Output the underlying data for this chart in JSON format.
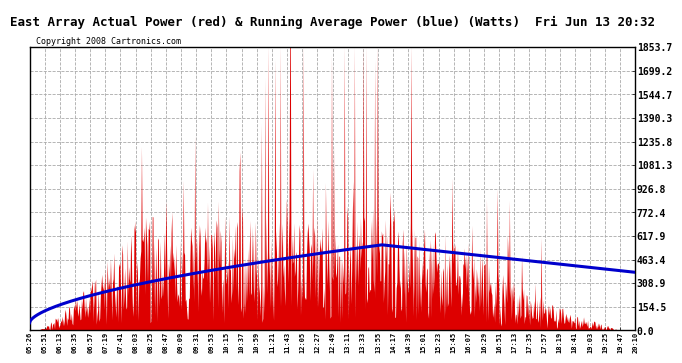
{
  "title": "East Array Actual Power (red) & Running Average Power (blue) (Watts)  Fri Jun 13 20:32",
  "copyright": "Copyright 2008 Cartronics.com",
  "y_ticks": [
    0.0,
    154.5,
    308.9,
    463.4,
    617.9,
    772.4,
    926.8,
    1081.3,
    1235.8,
    1390.3,
    1544.7,
    1699.2,
    1853.7
  ],
  "y_max": 1853.7,
  "y_min": 0.0,
  "x_labels": [
    "05:26",
    "05:51",
    "06:13",
    "06:35",
    "06:57",
    "07:19",
    "07:41",
    "08:03",
    "08:25",
    "08:47",
    "09:09",
    "09:31",
    "09:53",
    "10:15",
    "10:37",
    "10:59",
    "11:21",
    "11:43",
    "12:05",
    "12:27",
    "12:49",
    "13:11",
    "13:33",
    "13:55",
    "14:17",
    "14:39",
    "15:01",
    "15:23",
    "15:45",
    "16:07",
    "16:29",
    "16:51",
    "17:13",
    "17:35",
    "17:57",
    "18:19",
    "18:41",
    "19:03",
    "19:25",
    "19:47",
    "20:10"
  ],
  "background_color": "#ffffff",
  "bar_color": "#dd0000",
  "line_color": "#0000cc",
  "grid_color": "#aaaaaa",
  "border_color": "#000000",
  "title_font_size": 10,
  "copyright_font_size": 6.5
}
